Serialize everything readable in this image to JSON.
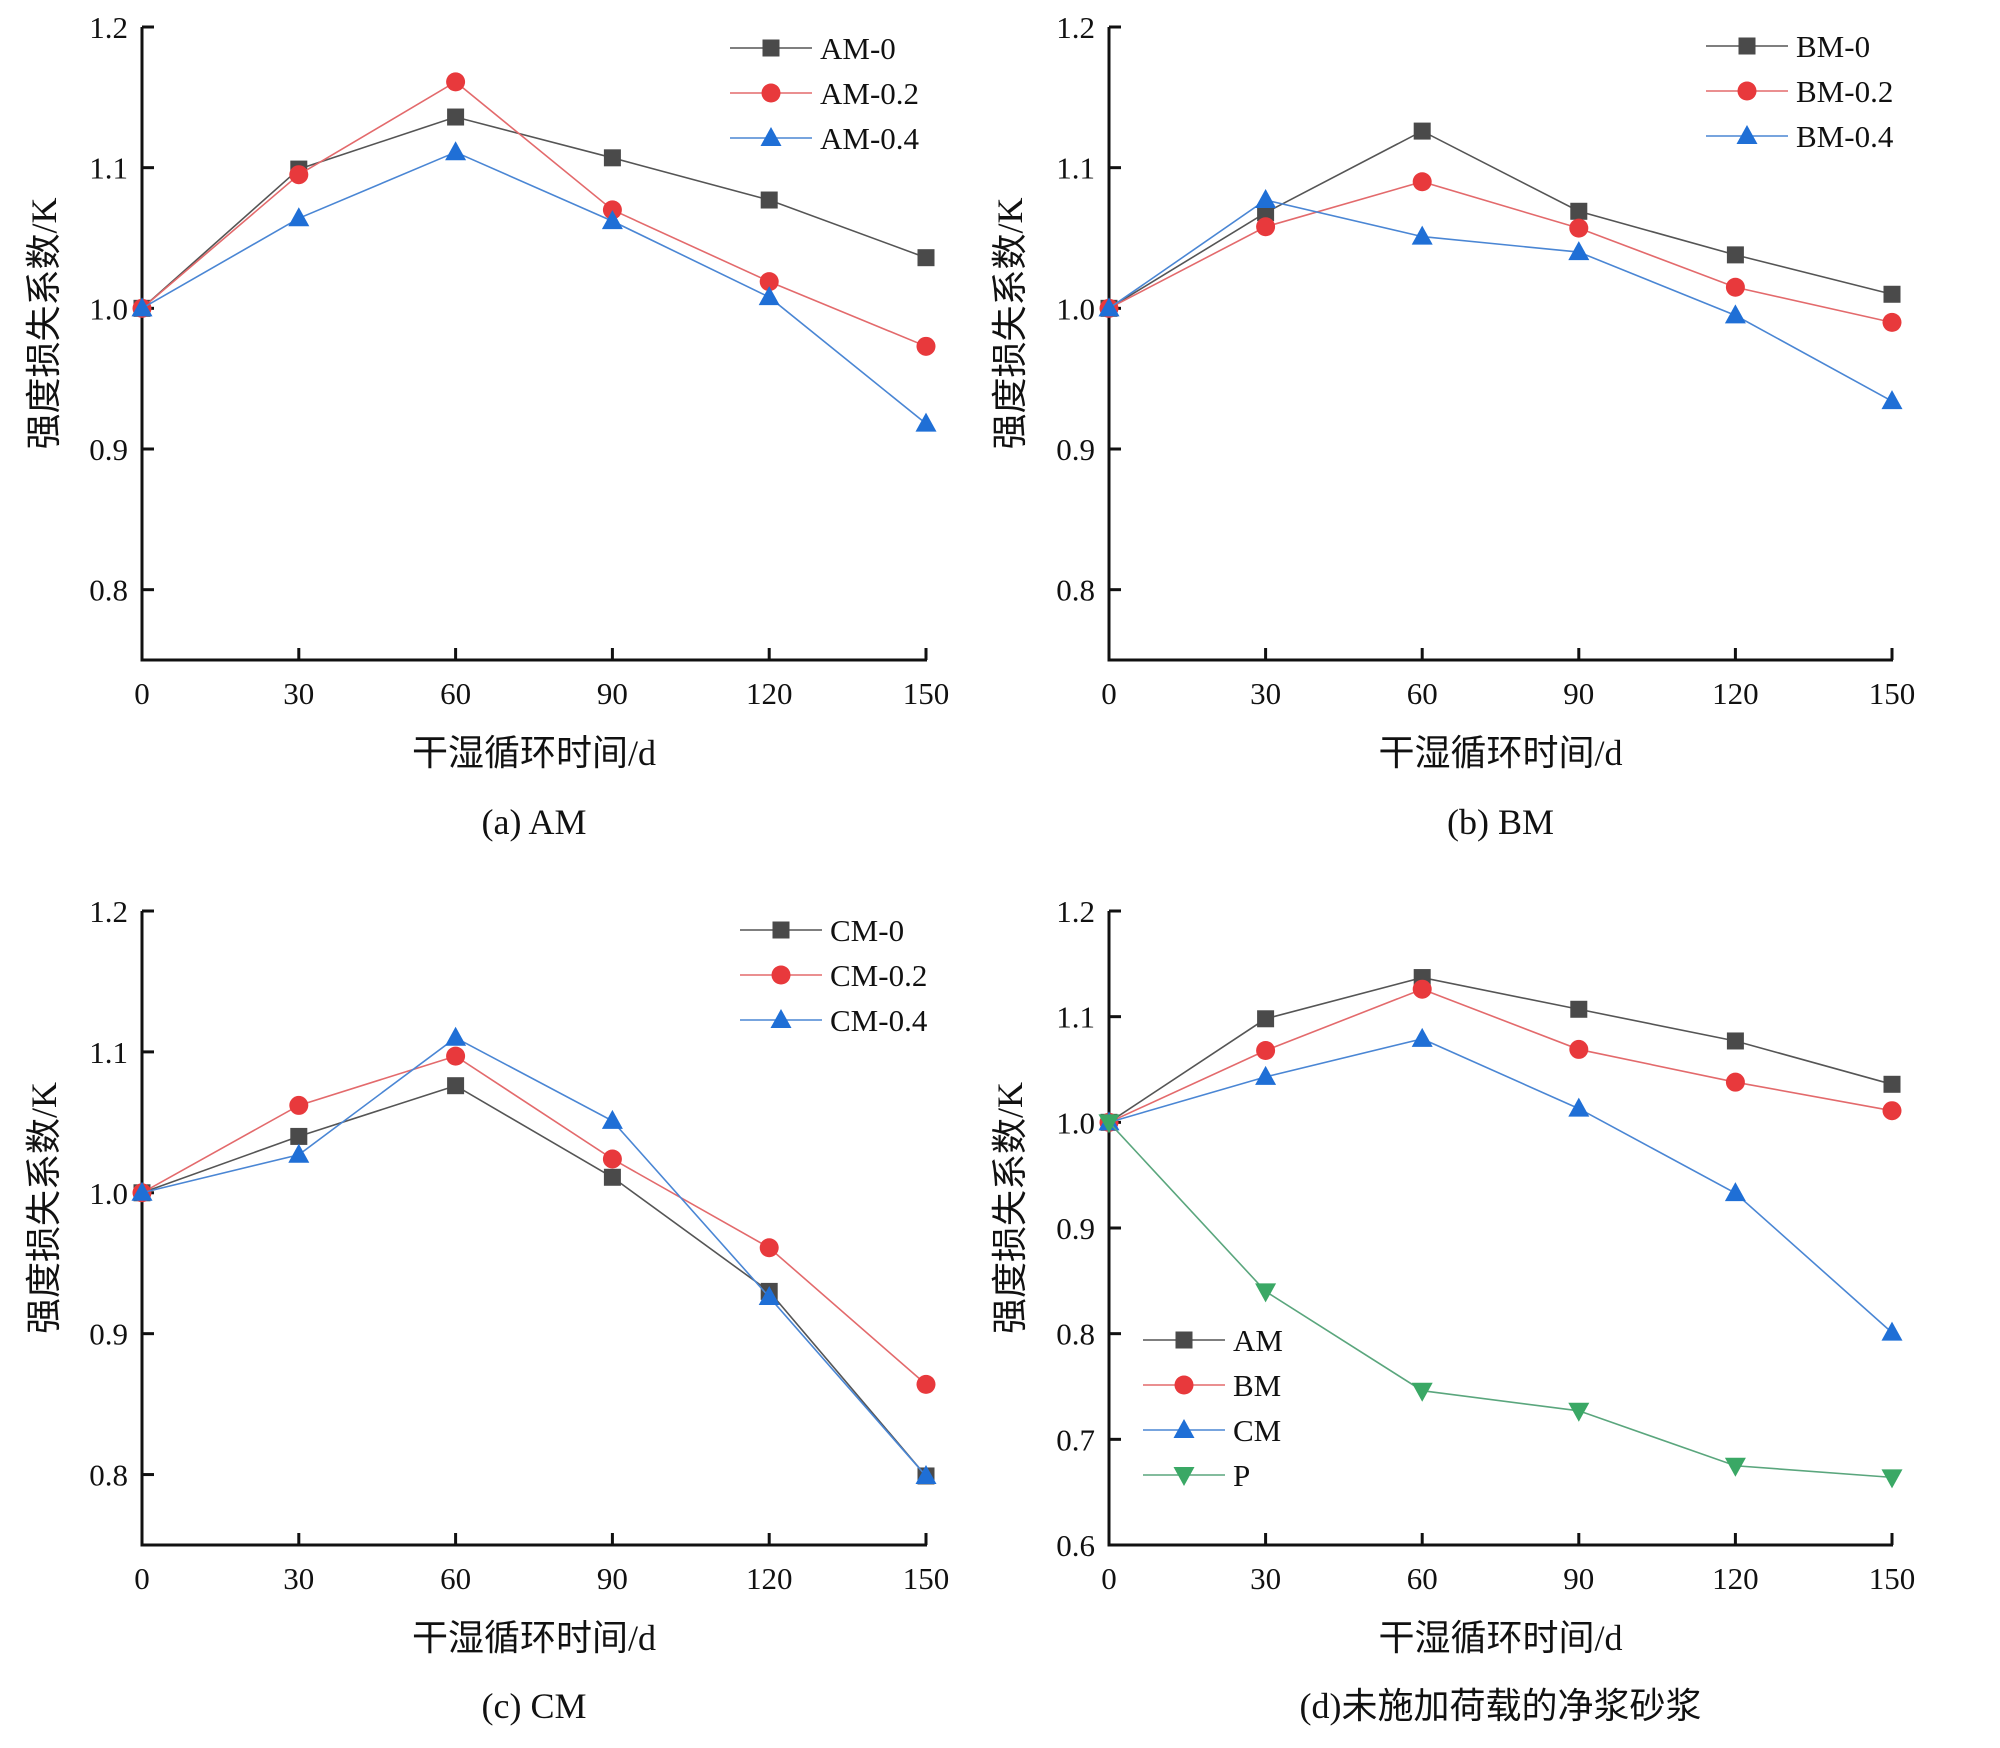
{
  "colors": {
    "series0": "#4a4a4a",
    "series1": "#e8393c",
    "series2": "#1f6fd6",
    "series3": "#3aa865",
    "line0": "#555555",
    "line1": "#e36a6c",
    "line2": "#4a86d4",
    "line3": "#5aa67d"
  },
  "chart_data": [
    {
      "type": "line",
      "caption": "(a) AM",
      "xlabel": "干湿循环时间/d",
      "ylabel": "强度损失系数/K",
      "x": [
        0,
        30,
        60,
        90,
        120,
        150
      ],
      "xticks": [
        "0",
        "30",
        "60",
        "90",
        "120",
        "150"
      ],
      "ylim": [
        0.75,
        1.2
      ],
      "yticks": [
        "0.8",
        "0.9",
        "1.0",
        "1.1",
        "1.2"
      ],
      "ytick_values": [
        0.8,
        0.9,
        1.0,
        1.1,
        1.2
      ],
      "legend_position": "top-right",
      "grid": false,
      "series": [
        {
          "name": "AM-0",
          "marker": "square",
          "values": [
            1.0,
            1.099,
            1.136,
            1.107,
            1.077,
            1.036
          ]
        },
        {
          "name": "AM-0.2",
          "marker": "circle",
          "values": [
            1.0,
            1.095,
            1.161,
            1.07,
            1.019,
            0.973
          ]
        },
        {
          "name": "AM-0.4",
          "marker": "triangle-up",
          "values": [
            1.0,
            1.064,
            1.111,
            1.062,
            1.008,
            0.918
          ]
        }
      ]
    },
    {
      "type": "line",
      "caption": "(b) BM",
      "xlabel": "干湿循环时间/d",
      "ylabel": "强度损失系数/K",
      "x": [
        0,
        30,
        60,
        90,
        120,
        150
      ],
      "xticks": [
        "0",
        "30",
        "60",
        "90",
        "120",
        "150"
      ],
      "ylim": [
        0.75,
        1.2
      ],
      "yticks": [
        "0.8",
        "0.9",
        "1.0",
        "1.1",
        "1.2"
      ],
      "ytick_values": [
        0.8,
        0.9,
        1.0,
        1.1,
        1.2
      ],
      "legend_position": "top-right",
      "grid": false,
      "series": [
        {
          "name": "BM-0",
          "marker": "square",
          "values": [
            1.0,
            1.068,
            1.126,
            1.069,
            1.038,
            1.01
          ]
        },
        {
          "name": "BM-0.2",
          "marker": "circle",
          "values": [
            1.0,
            1.058,
            1.09,
            1.057,
            1.015,
            0.99
          ]
        },
        {
          "name": "BM-0.4",
          "marker": "triangle-up",
          "values": [
            1.0,
            1.077,
            1.051,
            1.04,
            0.995,
            0.934
          ]
        }
      ]
    },
    {
      "type": "line",
      "caption": "(c) CM",
      "xlabel": "干湿循环时间/d",
      "ylabel": "强度损失系数/K",
      "x": [
        0,
        30,
        60,
        90,
        120,
        150
      ],
      "xticks": [
        "0",
        "30",
        "60",
        "90",
        "120",
        "150"
      ],
      "ylim": [
        0.75,
        1.2
      ],
      "yticks": [
        "0.8",
        "0.9",
        "1.0",
        "1.1",
        "1.2"
      ],
      "ytick_values": [
        0.8,
        0.9,
        1.0,
        1.1,
        1.2
      ],
      "legend_position": "top-right",
      "grid": false,
      "series": [
        {
          "name": "CM-0",
          "marker": "square",
          "values": [
            1.0,
            1.04,
            1.076,
            1.011,
            0.93,
            0.799
          ]
        },
        {
          "name": "CM-0.2",
          "marker": "circle",
          "values": [
            1.0,
            1.062,
            1.097,
            1.024,
            0.961,
            0.864
          ]
        },
        {
          "name": "CM-0.4",
          "marker": "triangle-up",
          "values": [
            1.0,
            1.027,
            1.11,
            1.051,
            0.926,
            0.799
          ]
        }
      ]
    },
    {
      "type": "line",
      "caption": "(d)未施加荷载的净浆砂浆",
      "xlabel": "干湿循环时间/d",
      "ylabel": "强度损失系数/K",
      "x": [
        0,
        30,
        60,
        90,
        120,
        150
      ],
      "xticks": [
        "0",
        "30",
        "60",
        "90",
        "120",
        "150"
      ],
      "ylim": [
        0.6,
        1.2
      ],
      "yticks": [
        "0.6",
        "0.7",
        "0.8",
        "0.9",
        "1.0",
        "1.1",
        "1.2"
      ],
      "ytick_values": [
        0.6,
        0.7,
        0.8,
        0.9,
        1.0,
        1.1,
        1.2
      ],
      "legend_position": "bottom-left",
      "grid": false,
      "series": [
        {
          "name": "AM",
          "marker": "square",
          "values": [
            1.0,
            1.098,
            1.137,
            1.107,
            1.077,
            1.036
          ]
        },
        {
          "name": "BM",
          "marker": "circle",
          "values": [
            1.0,
            1.068,
            1.126,
            1.069,
            1.038,
            1.011
          ]
        },
        {
          "name": "CM",
          "marker": "triangle-up",
          "values": [
            1.0,
            1.043,
            1.079,
            1.013,
            0.933,
            0.801
          ]
        },
        {
          "name": "P",
          "marker": "triangle-down",
          "values": [
            1.0,
            0.84,
            0.746,
            0.727,
            0.675,
            0.664
          ]
        }
      ]
    }
  ]
}
